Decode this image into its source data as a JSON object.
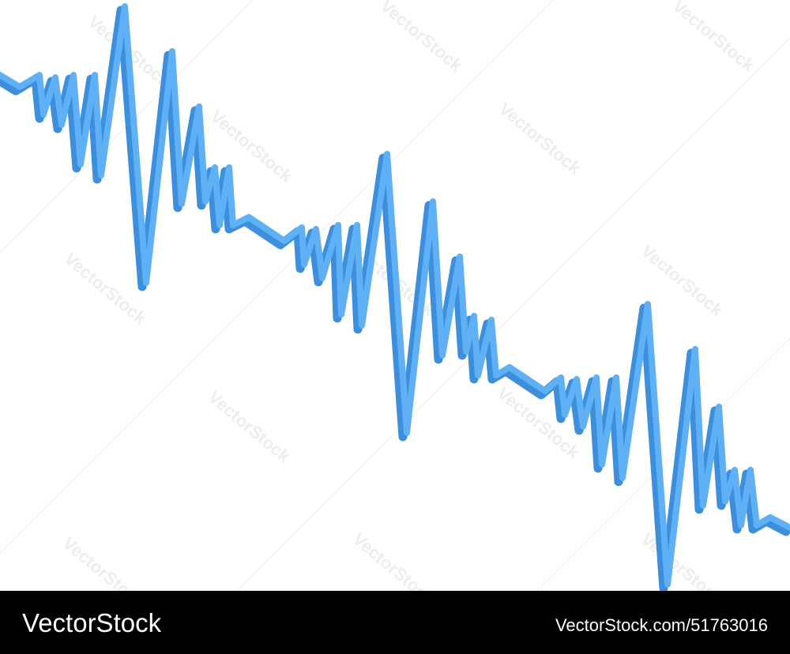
{
  "watermark": "VectorStock",
  "footer": {
    "brand": "VectorStock",
    "image_id": "VectorStock.com/51763016"
  }
}
